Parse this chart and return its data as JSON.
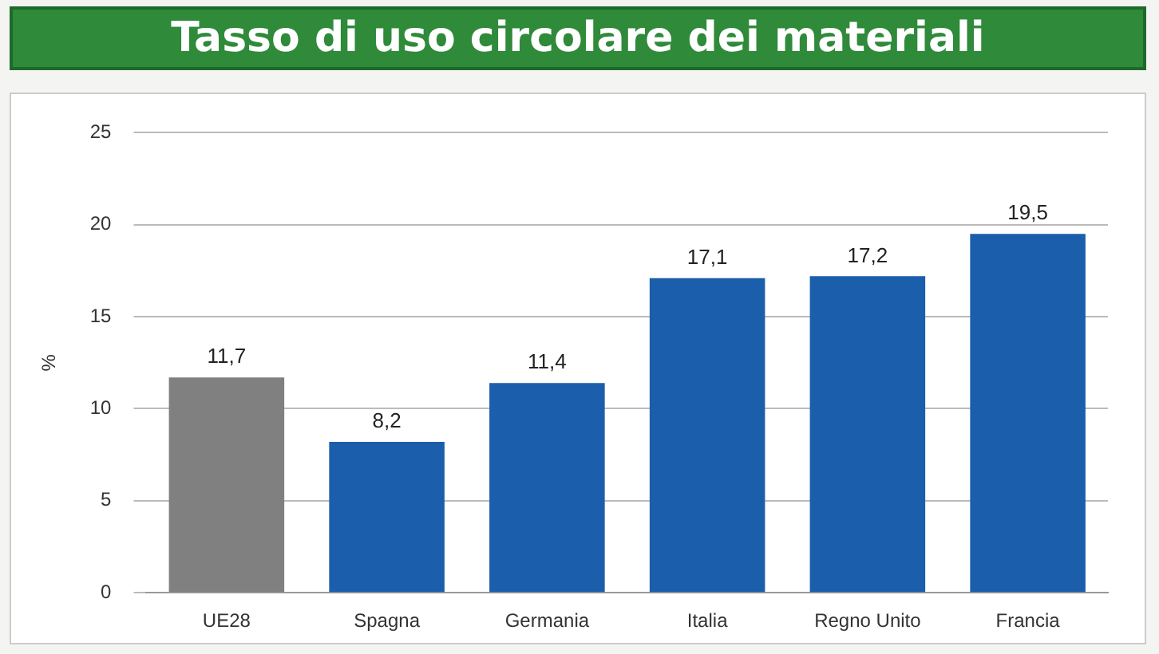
{
  "chart_data": {
    "type": "bar",
    "title": "Tasso di uso circolare dei materiali",
    "ylabel": "%",
    "categories": [
      "UE28",
      "Spagna",
      "Germania",
      "Italia",
      "Regno Unito",
      "Francia"
    ],
    "values": [
      11.7,
      8.2,
      11.4,
      17.1,
      17.2,
      19.5
    ],
    "colors": [
      "#808080",
      "#1b5eab",
      "#1b5eab",
      "#1b5eab",
      "#1b5eab",
      "#1b5eab"
    ],
    "value_labels": [
      "11,7",
      "8,2",
      "11,4",
      "17,1",
      "17,2",
      "19,5"
    ],
    "ylim": [
      0,
      25
    ],
    "yticks": [
      0,
      5,
      10,
      15,
      20,
      25
    ],
    "grid": "y",
    "legend": false
  }
}
